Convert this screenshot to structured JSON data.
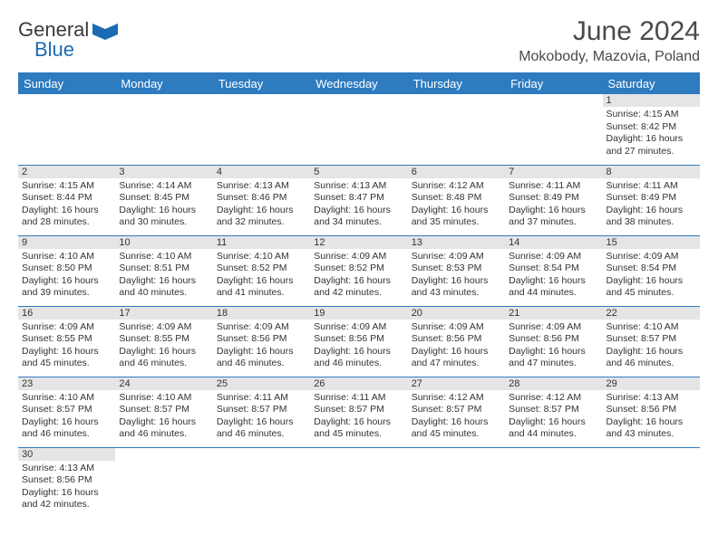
{
  "brand": {
    "name1": "General",
    "name2": "Blue"
  },
  "title": "June 2024",
  "location": "Mokobody, Mazovia, Poland",
  "colors": {
    "header_bg": "#2e7bc0",
    "header_fg": "#ffffff",
    "daynum_bg": "#e5e5e5",
    "border": "#2e7bc0",
    "brand_blue": "#1a6bb3"
  },
  "day_headers": [
    "Sunday",
    "Monday",
    "Tuesday",
    "Wednesday",
    "Thursday",
    "Friday",
    "Saturday"
  ],
  "weeks": [
    [
      null,
      null,
      null,
      null,
      null,
      null,
      {
        "n": "1",
        "sunrise": "4:15 AM",
        "sunset": "8:42 PM",
        "dl": "16 hours and 27 minutes."
      }
    ],
    [
      {
        "n": "2",
        "sunrise": "4:15 AM",
        "sunset": "8:44 PM",
        "dl": "16 hours and 28 minutes."
      },
      {
        "n": "3",
        "sunrise": "4:14 AM",
        "sunset": "8:45 PM",
        "dl": "16 hours and 30 minutes."
      },
      {
        "n": "4",
        "sunrise": "4:13 AM",
        "sunset": "8:46 PM",
        "dl": "16 hours and 32 minutes."
      },
      {
        "n": "5",
        "sunrise": "4:13 AM",
        "sunset": "8:47 PM",
        "dl": "16 hours and 34 minutes."
      },
      {
        "n": "6",
        "sunrise": "4:12 AM",
        "sunset": "8:48 PM",
        "dl": "16 hours and 35 minutes."
      },
      {
        "n": "7",
        "sunrise": "4:11 AM",
        "sunset": "8:49 PM",
        "dl": "16 hours and 37 minutes."
      },
      {
        "n": "8",
        "sunrise": "4:11 AM",
        "sunset": "8:49 PM",
        "dl": "16 hours and 38 minutes."
      }
    ],
    [
      {
        "n": "9",
        "sunrise": "4:10 AM",
        "sunset": "8:50 PM",
        "dl": "16 hours and 39 minutes."
      },
      {
        "n": "10",
        "sunrise": "4:10 AM",
        "sunset": "8:51 PM",
        "dl": "16 hours and 40 minutes."
      },
      {
        "n": "11",
        "sunrise": "4:10 AM",
        "sunset": "8:52 PM",
        "dl": "16 hours and 41 minutes."
      },
      {
        "n": "12",
        "sunrise": "4:09 AM",
        "sunset": "8:52 PM",
        "dl": "16 hours and 42 minutes."
      },
      {
        "n": "13",
        "sunrise": "4:09 AM",
        "sunset": "8:53 PM",
        "dl": "16 hours and 43 minutes."
      },
      {
        "n": "14",
        "sunrise": "4:09 AM",
        "sunset": "8:54 PM",
        "dl": "16 hours and 44 minutes."
      },
      {
        "n": "15",
        "sunrise": "4:09 AM",
        "sunset": "8:54 PM",
        "dl": "16 hours and 45 minutes."
      }
    ],
    [
      {
        "n": "16",
        "sunrise": "4:09 AM",
        "sunset": "8:55 PM",
        "dl": "16 hours and 45 minutes."
      },
      {
        "n": "17",
        "sunrise": "4:09 AM",
        "sunset": "8:55 PM",
        "dl": "16 hours and 46 minutes."
      },
      {
        "n": "18",
        "sunrise": "4:09 AM",
        "sunset": "8:56 PM",
        "dl": "16 hours and 46 minutes."
      },
      {
        "n": "19",
        "sunrise": "4:09 AM",
        "sunset": "8:56 PM",
        "dl": "16 hours and 46 minutes."
      },
      {
        "n": "20",
        "sunrise": "4:09 AM",
        "sunset": "8:56 PM",
        "dl": "16 hours and 47 minutes."
      },
      {
        "n": "21",
        "sunrise": "4:09 AM",
        "sunset": "8:56 PM",
        "dl": "16 hours and 47 minutes."
      },
      {
        "n": "22",
        "sunrise": "4:10 AM",
        "sunset": "8:57 PM",
        "dl": "16 hours and 46 minutes."
      }
    ],
    [
      {
        "n": "23",
        "sunrise": "4:10 AM",
        "sunset": "8:57 PM",
        "dl": "16 hours and 46 minutes."
      },
      {
        "n": "24",
        "sunrise": "4:10 AM",
        "sunset": "8:57 PM",
        "dl": "16 hours and 46 minutes."
      },
      {
        "n": "25",
        "sunrise": "4:11 AM",
        "sunset": "8:57 PM",
        "dl": "16 hours and 46 minutes."
      },
      {
        "n": "26",
        "sunrise": "4:11 AM",
        "sunset": "8:57 PM",
        "dl": "16 hours and 45 minutes."
      },
      {
        "n": "27",
        "sunrise": "4:12 AM",
        "sunset": "8:57 PM",
        "dl": "16 hours and 45 minutes."
      },
      {
        "n": "28",
        "sunrise": "4:12 AM",
        "sunset": "8:57 PM",
        "dl": "16 hours and 44 minutes."
      },
      {
        "n": "29",
        "sunrise": "4:13 AM",
        "sunset": "8:56 PM",
        "dl": "16 hours and 43 minutes."
      }
    ],
    [
      {
        "n": "30",
        "sunrise": "4:13 AM",
        "sunset": "8:56 PM",
        "dl": "16 hours and 42 minutes."
      },
      null,
      null,
      null,
      null,
      null,
      null
    ]
  ],
  "labels": {
    "sunrise": "Sunrise: ",
    "sunset": "Sunset: ",
    "daylight": "Daylight: "
  }
}
